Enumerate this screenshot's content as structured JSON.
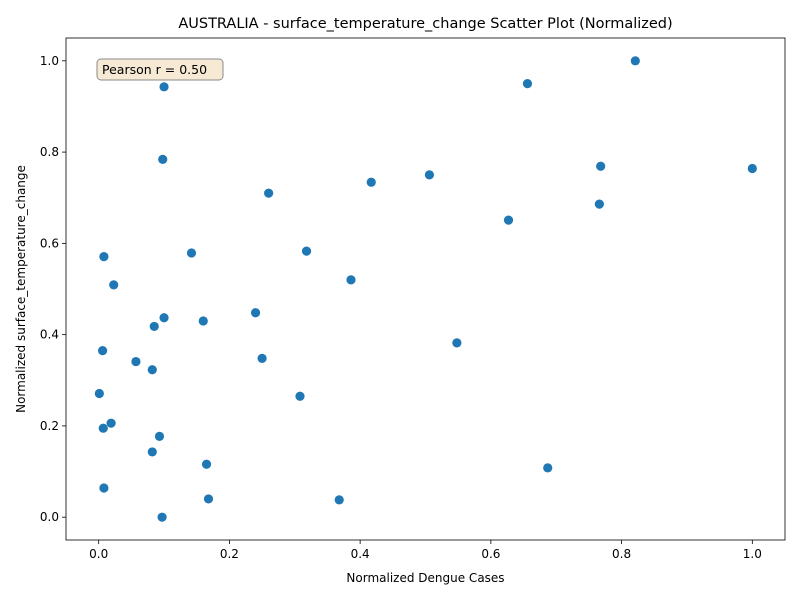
{
  "chart_data": {
    "type": "scatter",
    "title": "AUSTRALIA - surface_temperature_change Scatter Plot (Normalized)",
    "xlabel": "Normalized Dengue Cases",
    "ylabel": "Normalized surface_temperature_change",
    "xlim": [
      -0.05,
      1.05
    ],
    "ylim": [
      -0.05,
      1.05
    ],
    "xticks": [
      0.0,
      0.2,
      0.4,
      0.6,
      0.8,
      1.0
    ],
    "yticks": [
      0.0,
      0.2,
      0.4,
      0.6,
      0.8,
      1.0
    ],
    "xtick_labels": [
      "0.0",
      "0.2",
      "0.4",
      "0.6",
      "0.8",
      "1.0"
    ],
    "ytick_labels": [
      "0.0",
      "0.2",
      "0.4",
      "0.6",
      "0.8",
      "1.0"
    ],
    "grid": false,
    "marker_color": "#1f77b4",
    "annotation": "Pearson r = 0.50",
    "annotation_position": "top-left",
    "points": [
      {
        "x": 0.821,
        "y": 1.0
      },
      {
        "x": 0.656,
        "y": 0.95
      },
      {
        "x": 0.1,
        "y": 0.943
      },
      {
        "x": 0.098,
        "y": 0.784
      },
      {
        "x": 0.768,
        "y": 0.769
      },
      {
        "x": 1.0,
        "y": 0.764
      },
      {
        "x": 0.506,
        "y": 0.75
      },
      {
        "x": 0.417,
        "y": 0.734
      },
      {
        "x": 0.26,
        "y": 0.71
      },
      {
        "x": 0.766,
        "y": 0.686
      },
      {
        "x": 0.627,
        "y": 0.651
      },
      {
        "x": 0.318,
        "y": 0.583
      },
      {
        "x": 0.142,
        "y": 0.579
      },
      {
        "x": 0.008,
        "y": 0.571
      },
      {
        "x": 0.386,
        "y": 0.52
      },
      {
        "x": 0.023,
        "y": 0.509
      },
      {
        "x": 0.24,
        "y": 0.448
      },
      {
        "x": 0.1,
        "y": 0.437
      },
      {
        "x": 0.16,
        "y": 0.43
      },
      {
        "x": 0.085,
        "y": 0.418
      },
      {
        "x": 0.548,
        "y": 0.382
      },
      {
        "x": 0.006,
        "y": 0.365
      },
      {
        "x": 0.25,
        "y": 0.348
      },
      {
        "x": 0.057,
        "y": 0.341
      },
      {
        "x": 0.082,
        "y": 0.323
      },
      {
        "x": 0.001,
        "y": 0.271
      },
      {
        "x": 0.308,
        "y": 0.265
      },
      {
        "x": 0.019,
        "y": 0.206
      },
      {
        "x": 0.007,
        "y": 0.195
      },
      {
        "x": 0.093,
        "y": 0.177
      },
      {
        "x": 0.082,
        "y": 0.143
      },
      {
        "x": 0.165,
        "y": 0.116
      },
      {
        "x": 0.687,
        "y": 0.108
      },
      {
        "x": 0.008,
        "y": 0.064
      },
      {
        "x": 0.168,
        "y": 0.04
      },
      {
        "x": 0.368,
        "y": 0.038
      },
      {
        "x": 0.097,
        "y": 0.0
      }
    ]
  }
}
